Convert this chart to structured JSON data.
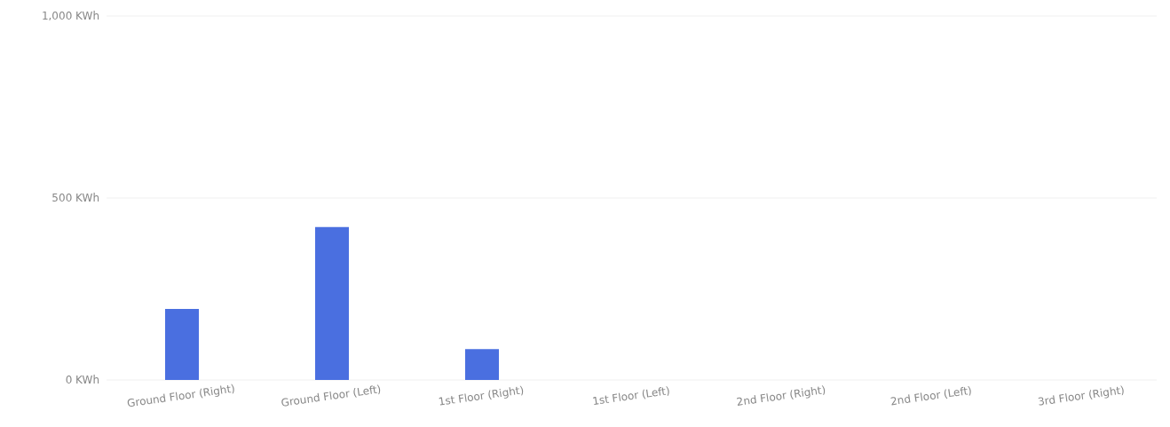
{
  "chart_data": {
    "type": "bar",
    "categories": [
      "Ground Floor (Right)",
      "Ground Floor (Left)",
      "1st Floor (Right)",
      "1st Floor (Left)",
      "2nd Floor (Right)",
      "2nd Floor (Left)",
      "3rd Floor (Right)"
    ],
    "values": [
      195,
      420,
      85,
      0,
      0,
      0,
      0
    ],
    "color": "#4a6fe0",
    "ylim": [
      0,
      1000
    ],
    "yticks": [
      {
        "value": 0,
        "label": "0 KWh"
      },
      {
        "value": 500,
        "label": "500 KWh"
      },
      {
        "value": 1000,
        "label": "1,000 KWh"
      }
    ],
    "grid": "y"
  }
}
